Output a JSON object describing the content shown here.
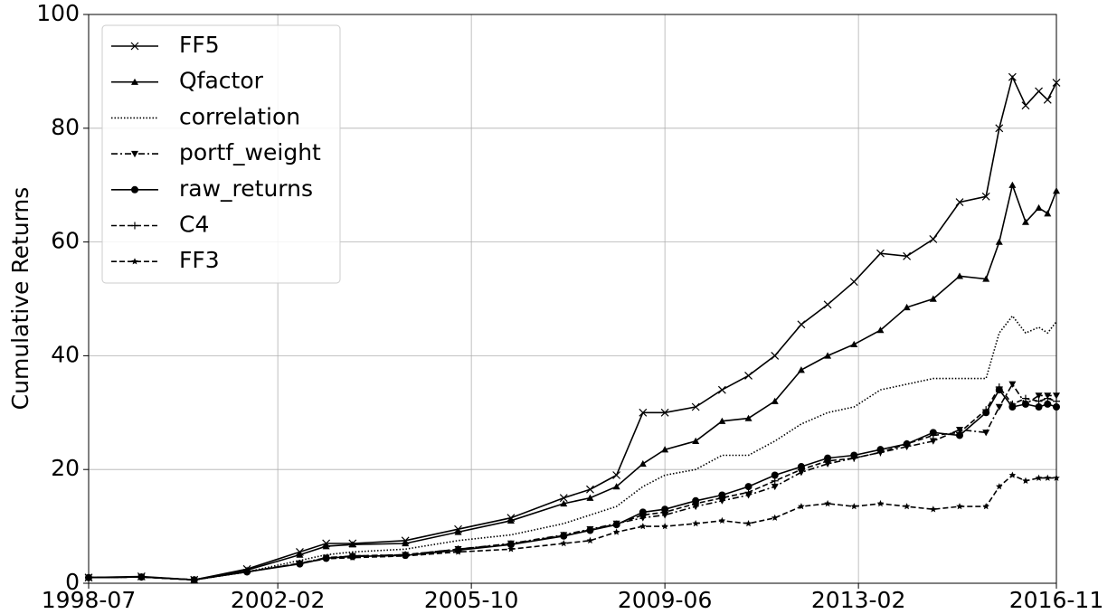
{
  "chart_data": {
    "type": "line",
    "y_label": "Cumulative Returns",
    "x": [
      "1998-07",
      "1999-07",
      "2000-07",
      "2001-07",
      "2002-07",
      "2003-01",
      "2003-07",
      "2004-07",
      "2005-07",
      "2006-07",
      "2007-07",
      "2008-01",
      "2008-07",
      "2009-01",
      "2009-06",
      "2010-01",
      "2010-07",
      "2011-01",
      "2011-07",
      "2012-01",
      "2012-07",
      "2013-01",
      "2013-07",
      "2014-01",
      "2014-07",
      "2015-01",
      "2015-07",
      "2015-10",
      "2016-01",
      "2016-04",
      "2016-07",
      "2016-09",
      "2016-11"
    ],
    "series": [
      {
        "name": "FF5",
        "color": "#000000",
        "dash": "solid",
        "marker": "x",
        "values": [
          1.0,
          1.2,
          0.6,
          2.5,
          5.5,
          7,
          7,
          7.5,
          9.5,
          11.5,
          15,
          16.5,
          19,
          30,
          30,
          31,
          34,
          36.5,
          40,
          45.5,
          49,
          53,
          58,
          57.5,
          60.5,
          67,
          68,
          80,
          89,
          84,
          86.5,
          85,
          88
        ]
      },
      {
        "name": "Qfactor",
        "color": "#000000",
        "dash": "solid",
        "marker": "triangle-up",
        "values": [
          1.0,
          1.1,
          0.6,
          2.3,
          5,
          6.5,
          6.8,
          7,
          9,
          11,
          14,
          15,
          17,
          21,
          23.5,
          25,
          28.5,
          29,
          32,
          37.5,
          40,
          42,
          44.5,
          48.5,
          50,
          54,
          53.5,
          60,
          70,
          63.5,
          66,
          65,
          69
        ]
      },
      {
        "name": "correlation",
        "color": "#000000",
        "dash": "dotted",
        "marker": "none",
        "values": [
          1.0,
          1.1,
          0.6,
          2,
          4,
          5,
          5.5,
          6,
          7.5,
          8.5,
          10.5,
          12,
          13.5,
          17,
          19,
          20,
          22.5,
          22.5,
          25,
          28,
          30,
          31,
          34,
          35,
          36,
          36,
          36,
          44,
          47,
          44,
          45,
          44,
          46
        ]
      },
      {
        "name": "portf_weight",
        "color": "#000000",
        "dash": "dashdot",
        "marker": "triangle-down",
        "values": [
          1.0,
          1.1,
          0.6,
          2,
          3.5,
          4.5,
          4.8,
          5,
          6,
          7,
          8.5,
          9.5,
          10.5,
          11.5,
          12,
          13.5,
          14.5,
          15.5,
          17,
          19.5,
          21,
          22,
          23,
          24,
          25,
          27,
          26.5,
          31,
          35,
          31.5,
          33,
          33,
          33
        ]
      },
      {
        "name": "raw_returns",
        "color": "#000000",
        "dash": "solid",
        "marker": "circle",
        "values": [
          1.0,
          1.1,
          0.6,
          2,
          3.4,
          4.4,
          4.7,
          4.9,
          5.8,
          6.8,
          8.3,
          9.3,
          10.3,
          12.5,
          13,
          14.5,
          15.5,
          17,
          19,
          20.5,
          22,
          22.5,
          23.5,
          24.5,
          26.5,
          26,
          30,
          34,
          31,
          31.5,
          31,
          31.5,
          31
        ]
      },
      {
        "name": "C4",
        "color": "#000000",
        "dash": "dashed",
        "marker": "plus",
        "values": [
          1.0,
          1.1,
          0.6,
          2,
          3.5,
          4.4,
          4.8,
          5,
          6,
          6.9,
          8.4,
          9.4,
          10.4,
          12,
          12.5,
          14,
          15,
          16,
          18,
          20,
          21.5,
          22,
          23,
          24.5,
          26,
          26.5,
          30.5,
          34.5,
          31.5,
          32.5,
          32,
          32.5,
          32
        ]
      },
      {
        "name": "FF3",
        "color": "#000000",
        "dash": "dashed",
        "marker": "star",
        "values": [
          1.0,
          1.1,
          0.6,
          2,
          3.5,
          4.3,
          4.5,
          4.8,
          5.5,
          6,
          7,
          7.5,
          9,
          10,
          10,
          10.5,
          11,
          10.5,
          11.5,
          13.5,
          14,
          13.5,
          14,
          13.5,
          13,
          13.5,
          13.5,
          17,
          19,
          18,
          18.5,
          18.5,
          18.5
        ]
      }
    ],
    "xlim": [
      "1998-07",
      "2016-11"
    ],
    "xticks": [
      "1998-07",
      "2002-02",
      "2005-10",
      "2009-06",
      "2013-02",
      "2016-11"
    ],
    "ylim": [
      0,
      100
    ],
    "yticks": [
      0,
      20,
      40,
      60,
      80,
      100
    ],
    "grid": true,
    "legend": "upper-left"
  }
}
